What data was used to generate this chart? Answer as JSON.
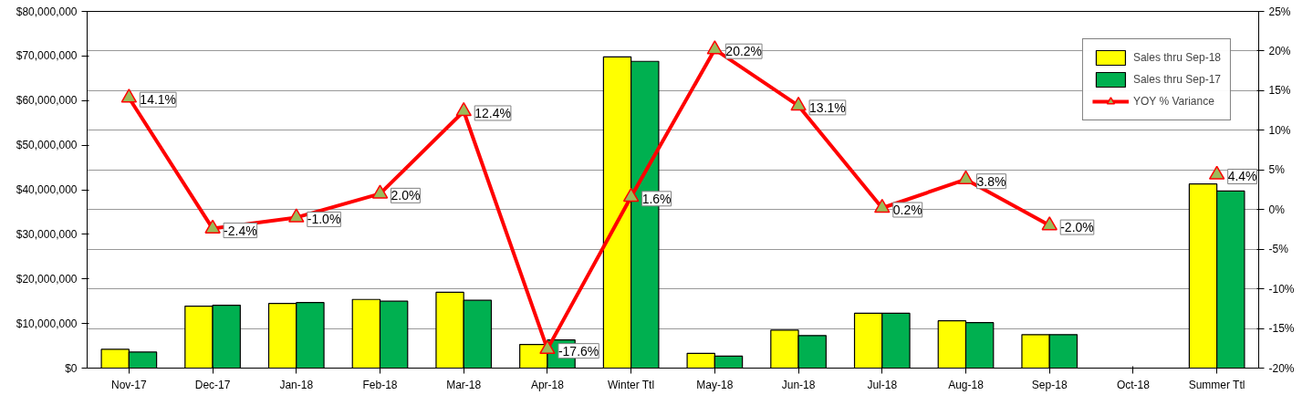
{
  "chart_data": {
    "type": "bar",
    "categories": [
      "Nov-17",
      "Dec-17",
      "Jan-18",
      "Feb-18",
      "Mar-18",
      "Apr-18",
      "Winter Ttl",
      "May-18",
      "Jun-18",
      "Jul-18",
      "Aug-18",
      "Sep-18",
      "Oct-18",
      "Summer Ttl"
    ],
    "series": [
      {
        "name": "Sales thru Sep-18",
        "color": "#ffff00",
        "values": [
          4200000,
          13900000,
          14500000,
          15400000,
          17000000,
          5300000,
          69800000,
          3300000,
          8500000,
          12300000,
          10600000,
          7500000,
          null,
          41300000
        ]
      },
      {
        "name": "Sales thru Sep-17",
        "color": "#00b050",
        "values": [
          3600000,
          14100000,
          14700000,
          15000000,
          15200000,
          6300000,
          68800000,
          2700000,
          7300000,
          12300000,
          10200000,
          7500000,
          null,
          39700000
        ]
      },
      {
        "name": "YOY % Variance",
        "type": "line",
        "axis": "y2",
        "color": "#ff0000",
        "marker": "triangle",
        "values": [
          14.1,
          -2.4,
          -1.0,
          2.0,
          12.4,
          -17.6,
          1.6,
          20.2,
          13.1,
          0.2,
          3.8,
          -2.0,
          null,
          4.4
        ],
        "value_labels": [
          "14.1%",
          "-2.4%",
          "-1.0%",
          "2.0%",
          "12.4%",
          "-17.6%",
          "1.6%",
          "20.2%",
          "13.1%",
          "0.2%",
          "3.8%",
          "-2.0%",
          null,
          "4.4%"
        ]
      }
    ],
    "ylim": [
      0,
      80000000
    ],
    "yticks": [
      {
        "value": 0,
        "label": "$0"
      },
      {
        "value": 10000000,
        "label": "$10,000,000"
      },
      {
        "value": 20000000,
        "label": "$20,000,000"
      },
      {
        "value": 30000000,
        "label": "$30,000,000"
      },
      {
        "value": 40000000,
        "label": "$40,000,000"
      },
      {
        "value": 50000000,
        "label": "$50,000,000"
      },
      {
        "value": 60000000,
        "label": "$60,000,000"
      },
      {
        "value": 70000000,
        "label": "$70,000,000"
      },
      {
        "value": 80000000,
        "label": "$80,000,000"
      }
    ],
    "y2lim": [
      -20,
      25
    ],
    "y2ticks": [
      {
        "value": -20,
        "label": "-20%"
      },
      {
        "value": -15,
        "label": "-15%"
      },
      {
        "value": -10,
        "label": "-10%"
      },
      {
        "value": -5,
        "label": "-5%"
      },
      {
        "value": 0,
        "label": "0%"
      },
      {
        "value": 5,
        "label": "5%"
      },
      {
        "value": 10,
        "label": "10%"
      },
      {
        "value": 15,
        "label": "15%"
      },
      {
        "value": 20,
        "label": "20%"
      },
      {
        "value": 25,
        "label": "25%"
      }
    ],
    "grid": true,
    "legend": "top right"
  }
}
